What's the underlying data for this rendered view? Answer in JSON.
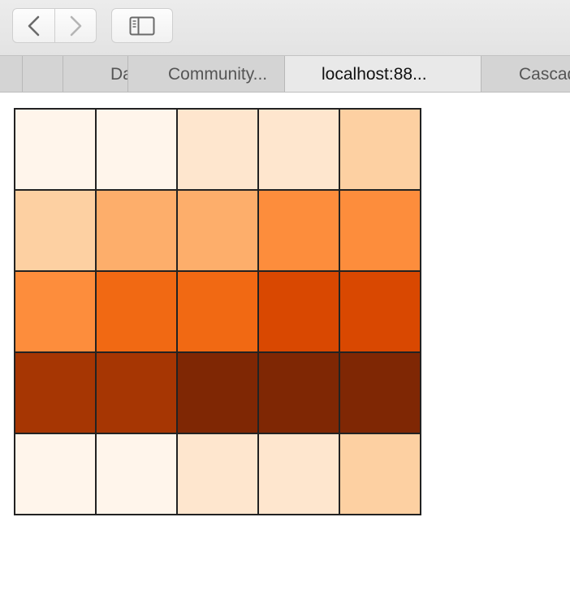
{
  "toolbar": {
    "back_icon": "chevron-left-icon",
    "forward_icon": "chevron-right-icon",
    "sidebar_icon": "sidebar-icon"
  },
  "tabs": [
    {
      "label": "",
      "active": false
    },
    {
      "label": "",
      "active": false
    },
    {
      "label": "Da",
      "active": false
    },
    {
      "label": "Community...",
      "active": false
    },
    {
      "label": "localhost:88...",
      "active": true
    },
    {
      "label": "Cascad",
      "active": false
    }
  ],
  "colors": {
    "cell_border": "#222222"
  },
  "chart_data": {
    "type": "heatmap",
    "rows": 5,
    "columns": 5,
    "colors": [
      [
        "#fff5eb",
        "#fff5eb",
        "#fee6ce",
        "#fee6ce",
        "#fdd0a2"
      ],
      [
        "#fdd0a2",
        "#fdae6b",
        "#fdae6b",
        "#fd8d3c",
        "#fd8d3c"
      ],
      [
        "#fd8d3c",
        "#f16913",
        "#f16913",
        "#d94801",
        "#d94801"
      ],
      [
        "#a63603",
        "#a63603",
        "#7f2704",
        "#7f2704",
        "#7f2704"
      ],
      [
        "#fff5eb",
        "#fff5eb",
        "#fee6ce",
        "#fee6ce",
        "#fdd0a2"
      ]
    ]
  }
}
